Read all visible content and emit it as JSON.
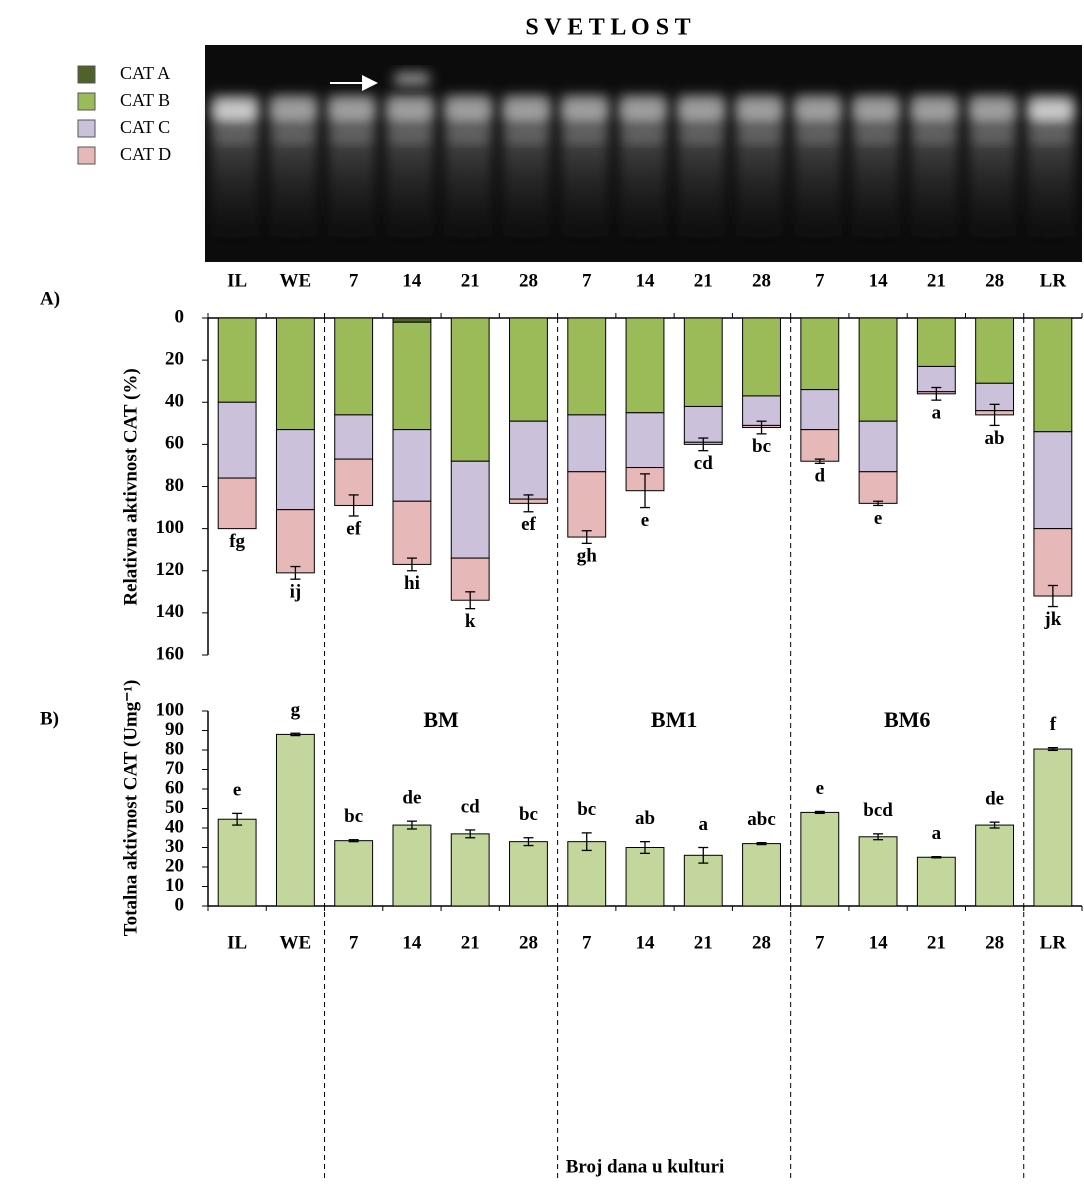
{
  "title": "S V E T L O S T",
  "gel_arrow": true,
  "chart_data": [
    {
      "type": "stacked-bar",
      "panel_label": "A)",
      "y_label": "Relativna aktivnost CAT (%)",
      "categories": [
        "IL",
        "WE",
        "7",
        "14",
        "21",
        "28",
        "7",
        "14",
        "21",
        "28",
        "7",
        "14",
        "21",
        "28",
        "LR"
      ],
      "series": [
        {
          "name": "CAT A",
          "color": "#4f6228",
          "values": [
            0,
            0,
            0,
            2,
            0,
            0,
            0,
            0,
            0,
            0,
            0,
            0,
            0,
            0,
            0
          ]
        },
        {
          "name": "CAT B",
          "color": "#9bbb59",
          "values": [
            40,
            53,
            46,
            51,
            68,
            49,
            46,
            45,
            42,
            37,
            34,
            49,
            23,
            31,
            54
          ]
        },
        {
          "name": "CAT C",
          "color": "#ccc1da",
          "values": [
            36,
            38,
            21,
            34,
            46,
            37,
            27,
            26,
            17,
            14,
            19,
            24,
            12,
            13,
            46
          ]
        },
        {
          "name": "CAT D",
          "color": "#e6b9b8",
          "values": [
            24,
            30,
            22,
            30,
            20,
            2,
            31,
            11,
            1,
            1,
            15,
            15,
            1,
            2,
            32
          ]
        }
      ],
      "errors": [
        0,
        3,
        5,
        3,
        4,
        4,
        3,
        8,
        3,
        3,
        1,
        1,
        3,
        5,
        5
      ],
      "letters": [
        "fg",
        "ij",
        "ef",
        "hi",
        "k",
        "ef",
        "gh",
        "e",
        "cd",
        "bc",
        "d",
        "e",
        "a",
        "ab",
        "jk"
      ],
      "ylim": [
        0,
        160
      ],
      "yticks": [
        0,
        20,
        40,
        60,
        80,
        100,
        120,
        140,
        160
      ],
      "reversed": true
    },
    {
      "type": "bar",
      "panel_label": "B)",
      "y_label": "Totalna aktivnost CAT (Umg⁻¹)",
      "x_label": "Broj dana u kulturi",
      "annotations": [
        "BM",
        "BM1",
        "BM6"
      ],
      "categories": [
        "IL",
        "WE",
        "7",
        "14",
        "21",
        "28",
        "7",
        "14",
        "21",
        "28",
        "7",
        "14",
        "21",
        "28",
        "LR"
      ],
      "values": [
        44.5,
        88,
        33.5,
        41.5,
        37,
        33,
        33,
        30,
        26,
        32,
        48,
        35.5,
        25,
        41.5,
        80.5
      ],
      "errors": [
        3,
        0.6,
        0.5,
        2,
        2,
        2,
        4.5,
        3,
        4,
        0.5,
        0.5,
        1.5,
        0.3,
        1.5,
        0.7
      ],
      "letters": [
        "e",
        "g",
        "bc",
        "de",
        "cd",
        "bc",
        "bc",
        "ab",
        "a",
        "abc",
        "e",
        "bcd",
        "a",
        "de",
        "f"
      ],
      "color": "#c3d69b",
      "ylim": [
        0,
        100
      ],
      "yticks": [
        0,
        10,
        20,
        30,
        40,
        50,
        60,
        70,
        80,
        90,
        100
      ]
    }
  ]
}
